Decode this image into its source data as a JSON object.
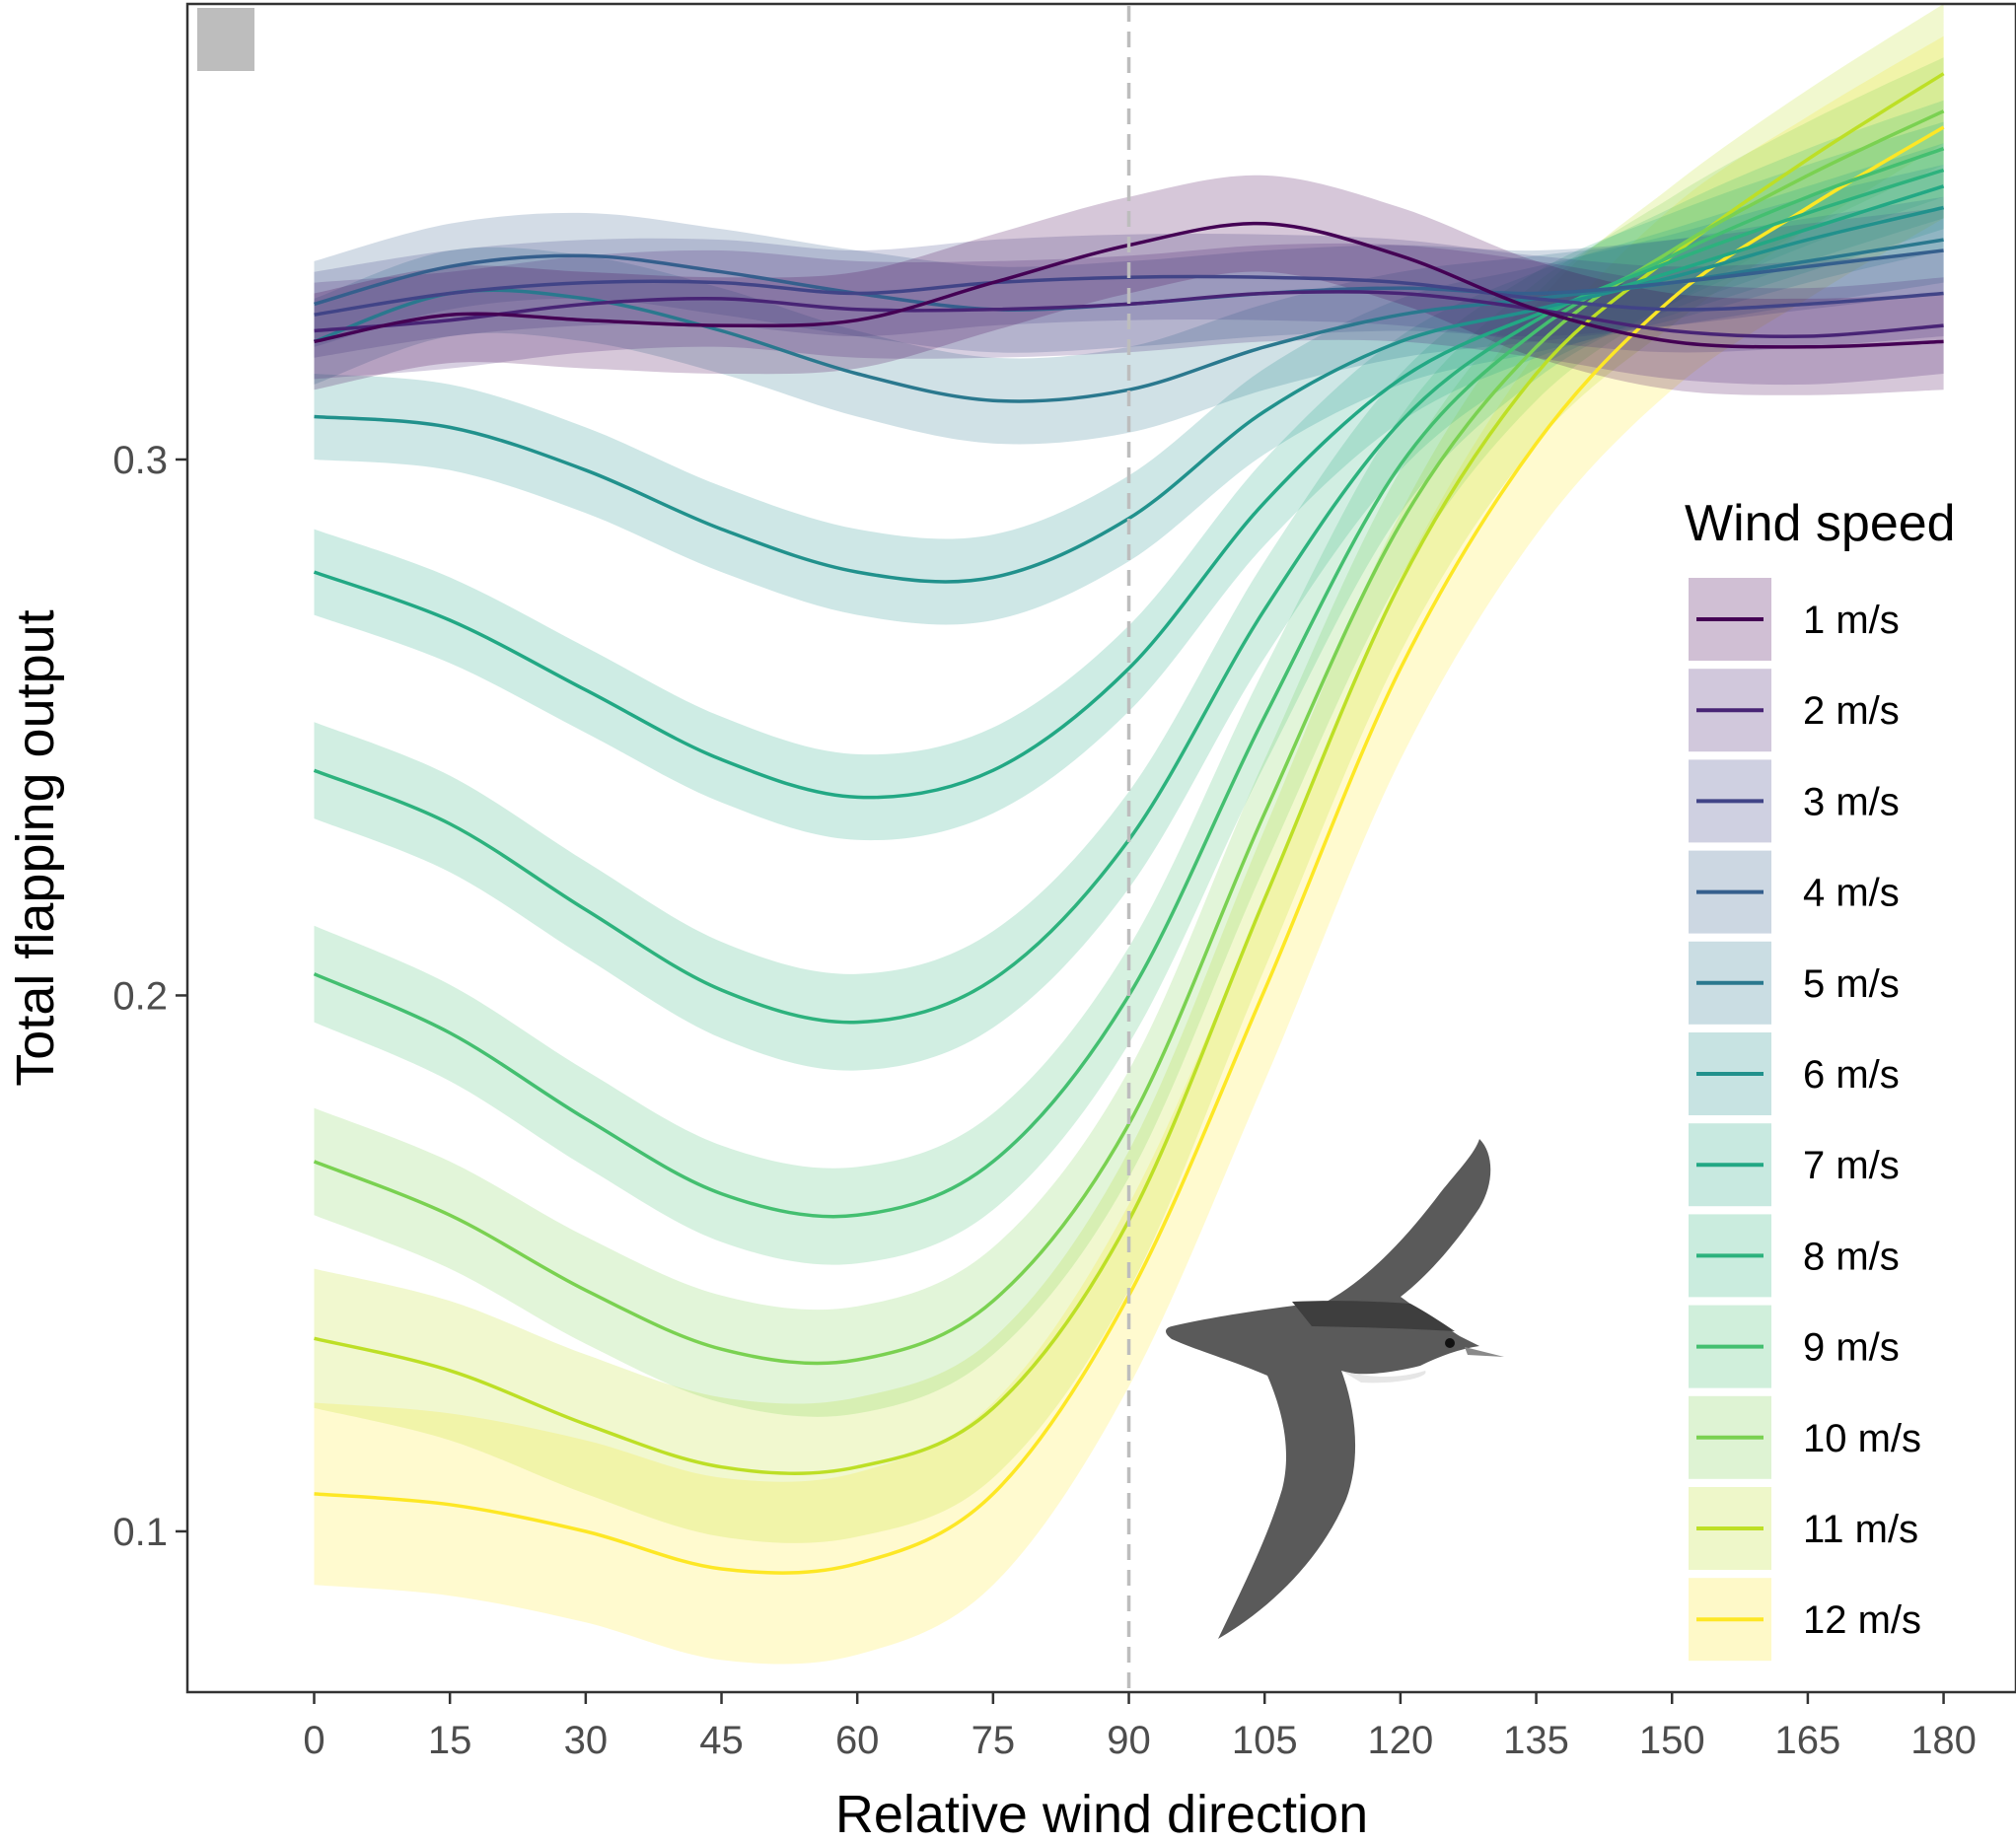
{
  "chart_data": {
    "type": "line",
    "xlabel": "Relative wind direction",
    "ylabel": "Total flapping output",
    "xlim": [
      -14,
      188
    ],
    "ylim": [
      0.07,
      0.385
    ],
    "x_ticks": [
      0,
      15,
      30,
      45,
      60,
      75,
      90,
      105,
      120,
      135,
      150,
      165,
      180
    ],
    "y_ticks": [
      0.1,
      0.2,
      0.3
    ],
    "y_tick_labels": [
      "0.1",
      "0.2",
      "0.3"
    ],
    "reference_line_x": 90,
    "grid": false,
    "legend": {
      "title": "Wind speed",
      "placement": "right"
    },
    "x": [
      0,
      15,
      30,
      45,
      60,
      75,
      90,
      105,
      120,
      135,
      150,
      165,
      180
    ],
    "series": [
      {
        "name": "1 m/s",
        "color": "#440154",
        "values": [
          0.322,
          0.327,
          0.326,
          0.325,
          0.326,
          0.333,
          0.34,
          0.344,
          0.338,
          0.328,
          0.322,
          0.321,
          0.322
        ],
        "ci": 0.009
      },
      {
        "name": "2 m/s",
        "color": "#482475",
        "values": [
          0.324,
          0.326,
          0.329,
          0.33,
          0.328,
          0.328,
          0.329,
          0.331,
          0.331,
          0.328,
          0.324,
          0.323,
          0.325
        ],
        "ci": 0.009
      },
      {
        "name": "3 m/s",
        "color": "#414487",
        "values": [
          0.327,
          0.331,
          0.333,
          0.333,
          0.331,
          0.333,
          0.334,
          0.334,
          0.333,
          0.33,
          0.328,
          0.329,
          0.331
        ],
        "ci": 0.008
      },
      {
        "name": "4 m/s",
        "color": "#355f8d",
        "values": [
          0.329,
          0.336,
          0.338,
          0.335,
          0.331,
          0.328,
          0.329,
          0.331,
          0.332,
          0.331,
          0.333,
          0.336,
          0.339
        ],
        "ci": 0.008
      },
      {
        "name": "5 m/s",
        "color": "#2a788e",
        "values": [
          0.322,
          0.331,
          0.33,
          0.324,
          0.316,
          0.311,
          0.313,
          0.321,
          0.327,
          0.33,
          0.333,
          0.337,
          0.341
        ],
        "ci": 0.008
      },
      {
        "name": "6 m/s",
        "color": "#21918c",
        "values": [
          0.308,
          0.306,
          0.298,
          0.287,
          0.279,
          0.278,
          0.289,
          0.309,
          0.322,
          0.328,
          0.334,
          0.341,
          0.347
        ],
        "ci": 0.008
      },
      {
        "name": "7 m/s",
        "color": "#22a884",
        "values": [
          0.279,
          0.27,
          0.257,
          0.244,
          0.237,
          0.242,
          0.261,
          0.292,
          0.315,
          0.327,
          0.335,
          0.343,
          0.351
        ],
        "ci": 0.008
      },
      {
        "name": "8 m/s",
        "color": "#2db27d",
        "values": [
          0.242,
          0.232,
          0.216,
          0.201,
          0.195,
          0.203,
          0.229,
          0.272,
          0.307,
          0.326,
          0.337,
          0.346,
          0.354
        ],
        "ci": 0.009
      },
      {
        "name": "9 m/s",
        "color": "#44bf70",
        "values": [
          0.204,
          0.193,
          0.177,
          0.163,
          0.159,
          0.169,
          0.2,
          0.252,
          0.299,
          0.324,
          0.338,
          0.349,
          0.358
        ],
        "ci": 0.009
      },
      {
        "name": "10 m/s",
        "color": "#7ad151",
        "values": [
          0.169,
          0.159,
          0.145,
          0.134,
          0.132,
          0.143,
          0.176,
          0.234,
          0.288,
          0.321,
          0.339,
          0.353,
          0.365
        ],
        "ci": 0.01
      },
      {
        "name": "11 m/s",
        "color": "#bddf26",
        "values": [
          0.136,
          0.13,
          0.12,
          0.112,
          0.112,
          0.123,
          0.158,
          0.218,
          0.277,
          0.316,
          0.338,
          0.356,
          0.372
        ],
        "ci": 0.013
      },
      {
        "name": "12 m/s",
        "color": "#fde725",
        "values": [
          0.107,
          0.105,
          0.1,
          0.093,
          0.094,
          0.107,
          0.144,
          0.201,
          0.261,
          0.303,
          0.33,
          0.347,
          0.362
        ],
        "ci": 0.017
      }
    ]
  },
  "decor": {
    "corner_tag_color": "#bdbdbd",
    "bird_icon": "seabird-silhouette-icon"
  }
}
